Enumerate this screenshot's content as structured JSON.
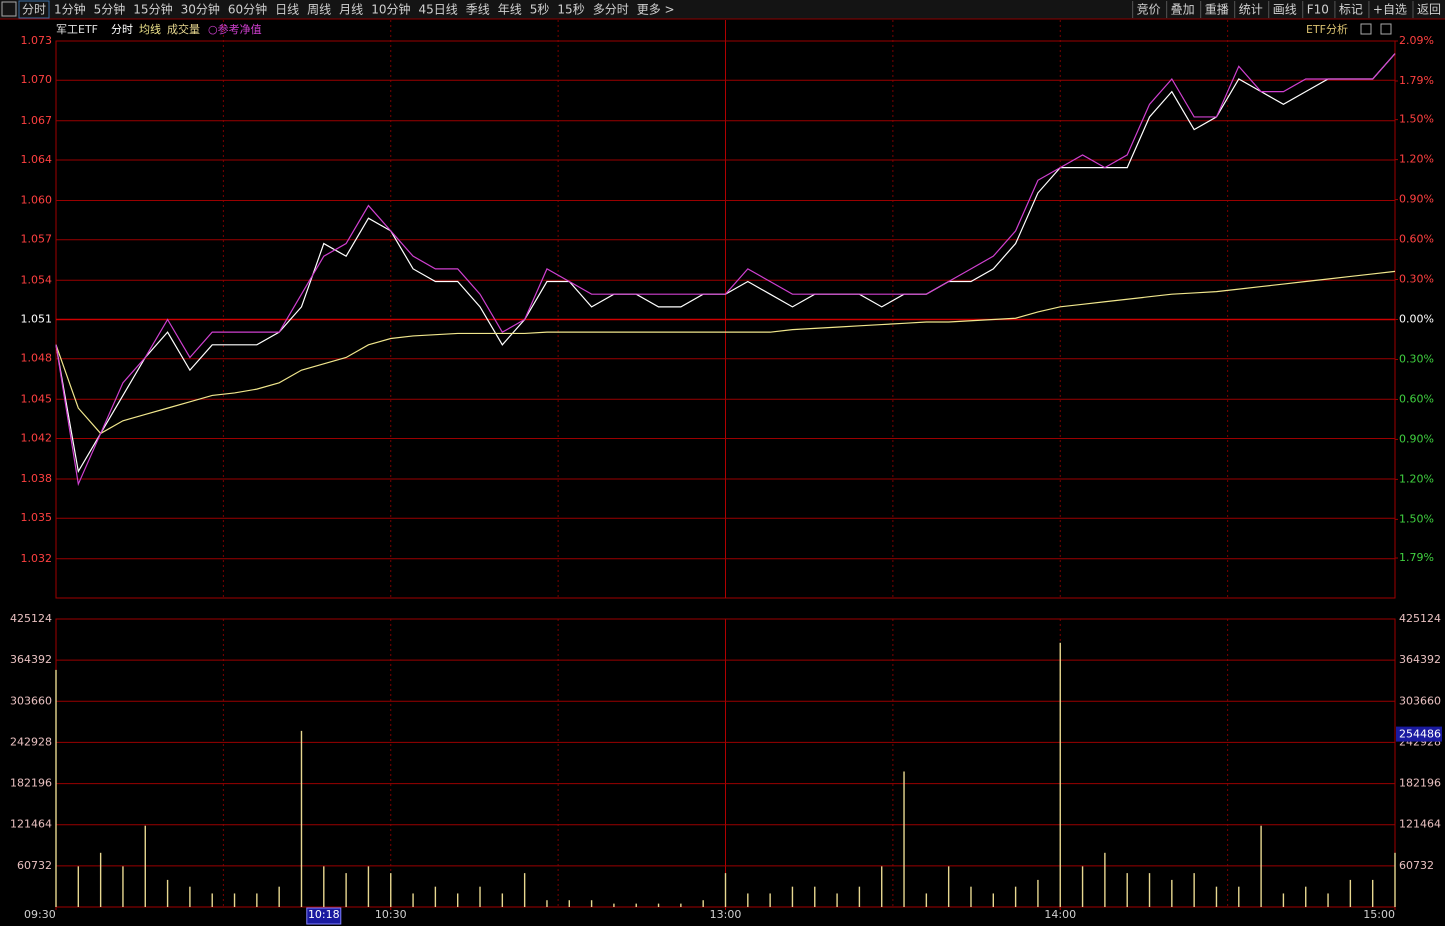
{
  "toolbar": {
    "tabs": [
      "分时",
      "1分钟",
      "5分钟",
      "15分钟",
      "30分钟",
      "60分钟",
      "日线",
      "周线",
      "月线",
      "10分钟",
      "45日线",
      "季线",
      "年线",
      "5秒",
      "15秒",
      "多分时",
      "更多 >"
    ],
    "tools": [
      "竞价",
      "叠加",
      "重播",
      "统计",
      "画线",
      "F10",
      "标记",
      "+自选",
      "返回"
    ]
  },
  "chart_data": [
    {
      "type": "line",
      "title": "军工ETF",
      "annotation": "ETF分析",
      "x": [
        0,
        4,
        8,
        12,
        16,
        20,
        24,
        28,
        32,
        36,
        40,
        44,
        48,
        52,
        56,
        60,
        64,
        68,
        72,
        76,
        80,
        84,
        88,
        92,
        96,
        100,
        104,
        108,
        112,
        116,
        120,
        124,
        128,
        132,
        136,
        140,
        144,
        148,
        152,
        156,
        160,
        164,
        168,
        172,
        176,
        180,
        184,
        188,
        192,
        196,
        200,
        204,
        208,
        212,
        216,
        220,
        224,
        228,
        232,
        236,
        240
      ],
      "xlim": [
        0,
        240
      ],
      "xgrid": [
        30,
        60,
        90,
        120,
        150,
        180,
        210
      ],
      "series": [
        {
          "name": "分时",
          "color": "#ffffff",
          "values": [
            1.049,
            1.039,
            1.042,
            1.045,
            1.048,
            1.05,
            1.047,
            1.049,
            1.049,
            1.049,
            1.05,
            1.052,
            1.057,
            1.056,
            1.059,
            1.058,
            1.055,
            1.054,
            1.054,
            1.052,
            1.049,
            1.051,
            1.054,
            1.054,
            1.052,
            1.053,
            1.053,
            1.052,
            1.052,
            1.053,
            1.053,
            1.054,
            1.053,
            1.052,
            1.053,
            1.053,
            1.053,
            1.052,
            1.053,
            1.053,
            1.054,
            1.054,
            1.055,
            1.057,
            1.061,
            1.063,
            1.063,
            1.063,
            1.063,
            1.067,
            1.069,
            1.066,
            1.067,
            1.07,
            1.069,
            1.068,
            1.069,
            1.07,
            1.07,
            1.07,
            1.072
          ]
        },
        {
          "name": "均线",
          "color": "#f0e68c",
          "values": [
            1.049,
            1.044,
            1.042,
            1.043,
            1.0435,
            1.044,
            1.0445,
            1.045,
            1.0452,
            1.0455,
            1.046,
            1.047,
            1.0475,
            1.048,
            1.049,
            1.0495,
            1.0497,
            1.0498,
            1.0499,
            1.0499,
            1.0499,
            1.0499,
            1.05,
            1.05,
            1.05,
            1.05,
            1.05,
            1.05,
            1.05,
            1.05,
            1.05,
            1.05,
            1.05,
            1.0502,
            1.0503,
            1.0504,
            1.0505,
            1.0506,
            1.0507,
            1.0508,
            1.0508,
            1.0509,
            1.051,
            1.0511,
            1.0516,
            1.052,
            1.0522,
            1.0524,
            1.0526,
            1.0528,
            1.053,
            1.0531,
            1.0532,
            1.0534,
            1.0536,
            1.0538,
            1.054,
            1.0542,
            1.0544,
            1.0546,
            1.0548
          ]
        },
        {
          "name": "○参考净值",
          "color": "#d040d0",
          "values": [
            1.049,
            1.038,
            1.042,
            1.046,
            1.048,
            1.051,
            1.048,
            1.05,
            1.05,
            1.05,
            1.05,
            1.053,
            1.056,
            1.057,
            1.06,
            1.058,
            1.056,
            1.055,
            1.055,
            1.053,
            1.05,
            1.051,
            1.055,
            1.054,
            1.053,
            1.053,
            1.053,
            1.053,
            1.053,
            1.053,
            1.053,
            1.055,
            1.054,
            1.053,
            1.053,
            1.053,
            1.053,
            1.053,
            1.053,
            1.053,
            1.054,
            1.055,
            1.056,
            1.058,
            1.062,
            1.063,
            1.064,
            1.063,
            1.064,
            1.068,
            1.07,
            1.067,
            1.067,
            1.071,
            1.069,
            1.069,
            1.07,
            1.07,
            1.07,
            1.07,
            1.072
          ]
        }
      ],
      "ylim": [
        1.029,
        1.073
      ],
      "yticks": [
        {
          "value": 1.073,
          "label": "1.073"
        },
        {
          "value": 1.0699,
          "label": "1.070"
        },
        {
          "value": 1.0667,
          "label": "1.067"
        },
        {
          "value": 1.0636,
          "label": "1.064"
        },
        {
          "value": 1.0604,
          "label": "1.060"
        },
        {
          "value": 1.0573,
          "label": "1.057"
        },
        {
          "value": 1.0541,
          "label": "1.054"
        },
        {
          "value": 1.051,
          "label": "1.051"
        },
        {
          "value": 1.0479,
          "label": "1.048"
        },
        {
          "value": 1.0447,
          "label": "1.045"
        },
        {
          "value": 1.0416,
          "label": "1.042"
        },
        {
          "value": 1.0384,
          "label": "1.038"
        },
        {
          "value": 1.0353,
          "label": "1.035"
        },
        {
          "value": 1.0321,
          "label": "1.032"
        }
      ],
      "y2lim": [
        -2.09,
        2.09
      ],
      "y2ticks": [
        {
          "value": 2.09,
          "label": "2.09%"
        },
        {
          "value": 1.79,
          "label": "1.79%"
        },
        {
          "value": 1.5,
          "label": "1.50%"
        },
        {
          "value": 1.2,
          "label": "1.20%"
        },
        {
          "value": 0.9,
          "label": "0.90%"
        },
        {
          "value": 0.6,
          "label": "0.60%"
        },
        {
          "value": 0.3,
          "label": "0.30%"
        },
        {
          "value": 0,
          "label": "0.00%"
        },
        {
          "value": -0.3,
          "label": "0.30%"
        },
        {
          "value": -0.6,
          "label": "0.60%"
        },
        {
          "value": -0.9,
          "label": "0.90%"
        },
        {
          "value": -1.2,
          "label": "1.20%"
        },
        {
          "value": -1.5,
          "label": "1.50%"
        },
        {
          "value": -1.79,
          "label": "1.79%"
        }
      ]
    },
    {
      "type": "bar",
      "x": [
        0,
        4,
        8,
        12,
        16,
        20,
        24,
        28,
        32,
        36,
        40,
        44,
        48,
        52,
        56,
        60,
        64,
        68,
        72,
        76,
        80,
        84,
        88,
        92,
        96,
        100,
        104,
        108,
        112,
        116,
        120,
        124,
        128,
        132,
        136,
        140,
        144,
        148,
        152,
        156,
        160,
        164,
        168,
        172,
        176,
        180,
        184,
        188,
        192,
        196,
        200,
        204,
        208,
        212,
        216,
        220,
        224,
        228,
        232,
        236,
        240
      ],
      "xlim": [
        0,
        240
      ],
      "xgrid": [
        30,
        60,
        90,
        120,
        150,
        180,
        210
      ],
      "series": [
        {
          "name": "成交量",
          "color": "#e8d890",
          "values": [
            350000,
            60000,
            80000,
            60000,
            120000,
            40000,
            30000,
            20000,
            20000,
            20000,
            30000,
            260000,
            60000,
            50000,
            60000,
            50000,
            20000,
            30000,
            20000,
            30000,
            20000,
            50000,
            10000,
            10000,
            10000,
            5000,
            5000,
            5000,
            5000,
            10000,
            50000,
            20000,
            20000,
            30000,
            30000,
            20000,
            30000,
            60000,
            200000,
            20000,
            60000,
            30000,
            20000,
            30000,
            40000,
            390000,
            60000,
            80000,
            50000,
            50000,
            40000,
            50000,
            30000,
            30000,
            120000,
            20000,
            30000,
            20000,
            40000,
            40000,
            80000
          ]
        }
      ],
      "ylim": [
        0,
        425124
      ],
      "yticks": [
        60732,
        121464,
        182196,
        242928,
        303660,
        364392,
        425124
      ],
      "xticks": [
        {
          "value": 0,
          "label": "09:30"
        },
        {
          "value": 60,
          "label": "10:30"
        },
        {
          "value": 120,
          "label": "13:00"
        },
        {
          "value": 180,
          "label": "14:00"
        },
        {
          "value": 240,
          "label": "15:00"
        }
      ],
      "cursor": {
        "x": 48,
        "time_label": "10:18",
        "y": 254486
      }
    }
  ]
}
